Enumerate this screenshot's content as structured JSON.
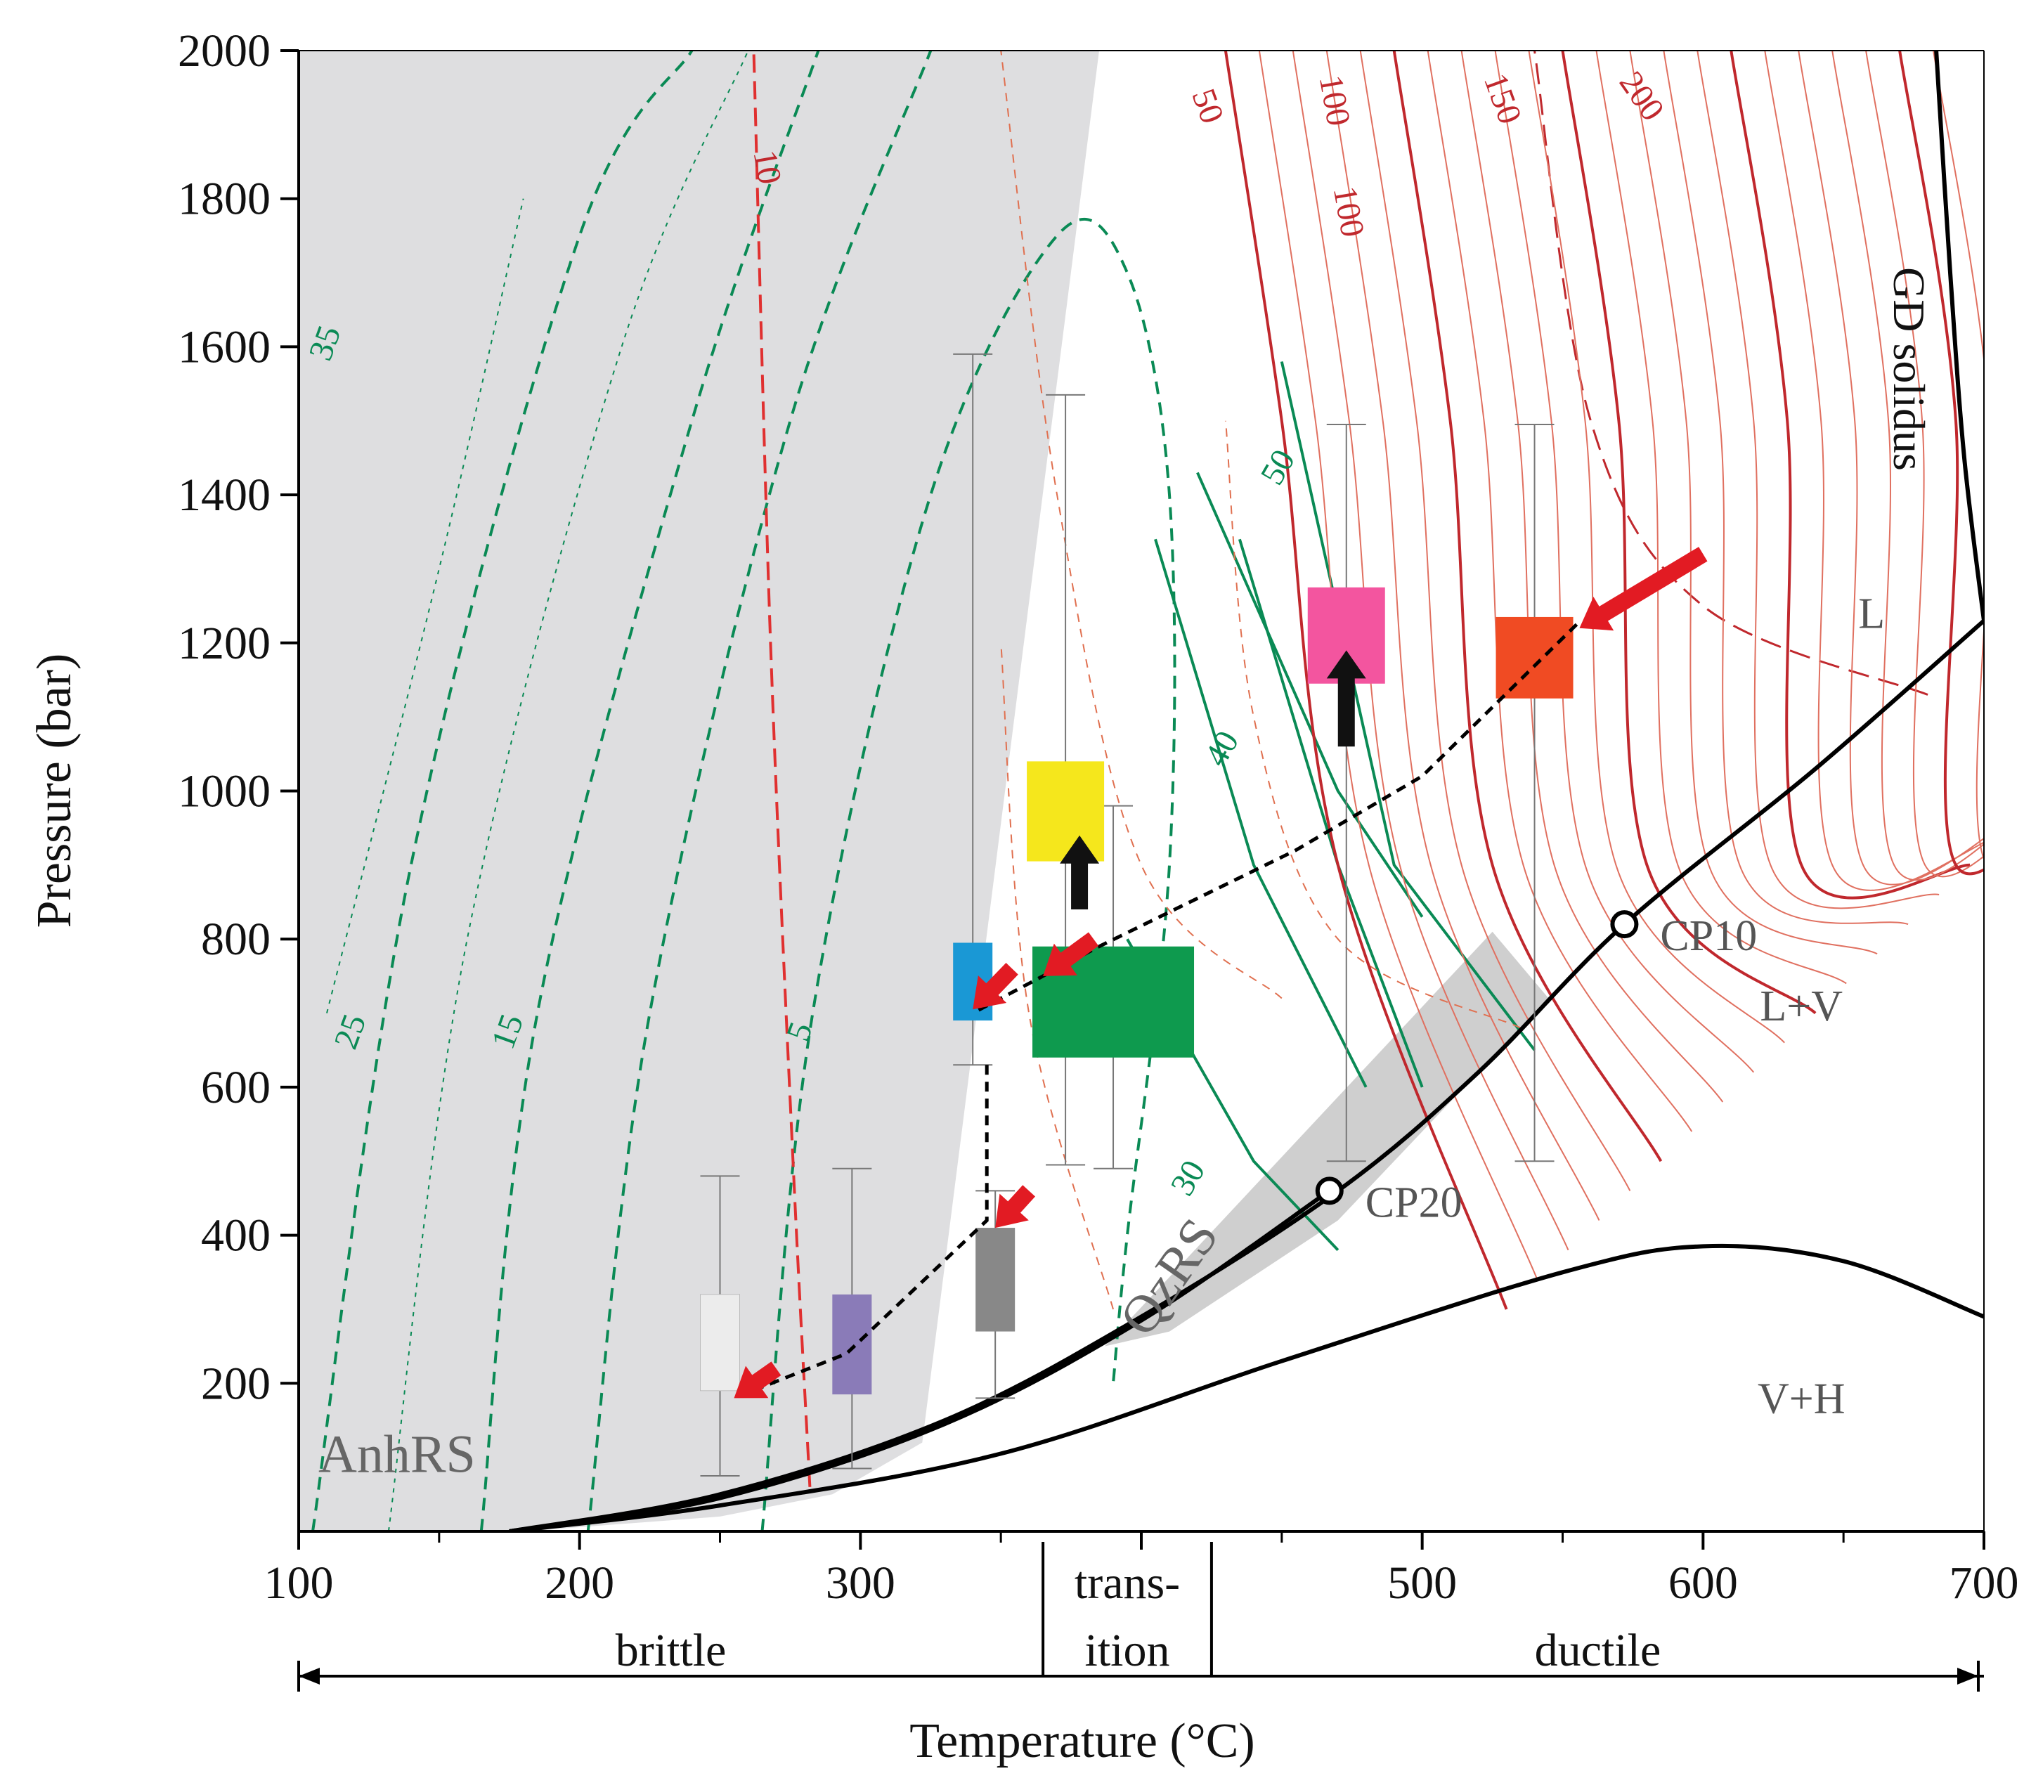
{
  "chart_data": {
    "type": "scatter",
    "title": "",
    "xlabel": "Temperature (°C)",
    "ylabel": "Pressure (bar)",
    "xlim": [
      100,
      700
    ],
    "ylim": [
      0,
      2000
    ],
    "x_ticks": [
      100,
      200,
      300,
      400,
      500,
      600,
      700
    ],
    "x_tick_labels": [
      "100",
      "200",
      "300",
      "",
      "500",
      "600",
      "700"
    ],
    "y_ticks": [
      200,
      400,
      600,
      800,
      1000,
      1200,
      1400,
      1600,
      1800,
      2000
    ],
    "y_tick_labels": [
      "200",
      "400",
      "600",
      "800",
      "1000",
      "1200",
      "1400",
      "1600",
      "1800",
      "2000"
    ],
    "grid": false,
    "regimes": [
      {
        "label": "brittle",
        "range": [
          100,
          365
        ]
      },
      {
        "label": "trans-",
        "label2": "ition",
        "range": [
          365,
          425
        ]
      },
      {
        "label": "ductile",
        "range": [
          425,
          700
        ]
      }
    ],
    "phase_fields": [
      {
        "label": "L",
        "x": 660,
        "y": 1220
      },
      {
        "label": "L+V",
        "x": 635,
        "y": 690
      },
      {
        "label": "V+H",
        "x": 635,
        "y": 160
      }
    ],
    "critical_points": [
      {
        "label": "CP10",
        "x": 572,
        "y": 820
      },
      {
        "label": "CP20",
        "x": 467,
        "y": 460
      }
    ],
    "boundaries": [
      {
        "name": "GD solidus",
        "points": [
          [
            683,
            2000
          ],
          [
            688,
            1700
          ],
          [
            693,
            1450
          ],
          [
            700,
            1230
          ]
        ]
      },
      {
        "name": "L-L+V boundary",
        "points": [
          [
            175,
            0
          ],
          [
            250,
            50
          ],
          [
            330,
            150
          ],
          [
            400,
            290
          ],
          [
            470,
            460
          ],
          [
            520,
            620
          ],
          [
            572,
            820
          ],
          [
            640,
            1030
          ],
          [
            700,
            1230
          ]
        ]
      },
      {
        "name": "CP20 boundary",
        "points": [
          [
            175,
            0
          ],
          [
            250,
            45
          ],
          [
            330,
            145
          ],
          [
            400,
            285
          ],
          [
            467,
            460
          ]
        ]
      },
      {
        "name": "V+H boundary",
        "points": [
          [
            175,
            0
          ],
          [
            250,
            35
          ],
          [
            350,
            105
          ],
          [
            450,
            230
          ],
          [
            550,
            350
          ],
          [
            600,
            385
          ],
          [
            650,
            365
          ],
          [
            700,
            290
          ]
        ]
      }
    ],
    "shaded_regions": [
      {
        "label": "AnhRS",
        "points": [
          [
            100,
            0
          ],
          [
            100,
            2000
          ],
          [
            385,
            2000
          ],
          [
            322,
            120
          ],
          [
            290,
            50
          ],
          [
            250,
            20
          ],
          [
            180,
            0
          ]
        ]
      },
      {
        "label": "QzRS",
        "points": [
          [
            387,
            250
          ],
          [
            525,
            810
          ],
          [
            545,
            720
          ],
          [
            470,
            420
          ],
          [
            410,
            270
          ]
        ]
      }
    ],
    "green_contour_labels": [
      "35",
      "25",
      "15",
      "5",
      "50",
      "40",
      "30"
    ],
    "red_contour_labels": [
      "10",
      "50",
      "100",
      "100",
      "150",
      "200"
    ],
    "samples": [
      {
        "id": "s1",
        "color": "#ececec",
        "x": 250,
        "y_low": 190,
        "y_high": 320,
        "err_low": 75,
        "err_high": 480
      },
      {
        "id": "s2",
        "color": "#8a7bb8",
        "x": 297,
        "y_low": 185,
        "y_high": 320,
        "err_low": 85,
        "err_high": 490
      },
      {
        "id": "s3",
        "color": "#888888",
        "x": 348,
        "y_low": 270,
        "y_high": 410,
        "err_low": 180,
        "err_high": 460
      },
      {
        "id": "s4",
        "color": "#1a98d5",
        "x": 340,
        "y_low": 690,
        "y_high": 795,
        "err_low": 630,
        "err_high": 1590
      },
      {
        "id": "s5",
        "color": "#f5e71c",
        "x": 373,
        "y_low": 905,
        "y_high": 1040,
        "err_low": 495,
        "err_high": 1535
      },
      {
        "id": "s6",
        "color": "#0e9a4e",
        "x": 390,
        "y_low": 640,
        "y_high": 790,
        "err_low": 490,
        "err_high": 980
      },
      {
        "id": "s7",
        "color": "#f3559f",
        "x": 473,
        "y_low": 1145,
        "y_high": 1275,
        "err_low": 500,
        "err_high": 1495
      },
      {
        "id": "s8",
        "color": "#f04b23",
        "x": 540,
        "y_low": 1125,
        "y_high": 1235,
        "err_low": 500,
        "err_high": 1495
      }
    ],
    "path": [
      [
        555,
        1225
      ],
      [
        500,
        1020
      ],
      [
        455,
        920
      ],
      [
        385,
        790
      ],
      [
        360,
        740
      ],
      [
        340,
        700
      ]
    ],
    "path2": [
      [
        345,
        630
      ],
      [
        345,
        420
      ],
      [
        295,
        240
      ],
      [
        255,
        180
      ]
    ]
  }
}
